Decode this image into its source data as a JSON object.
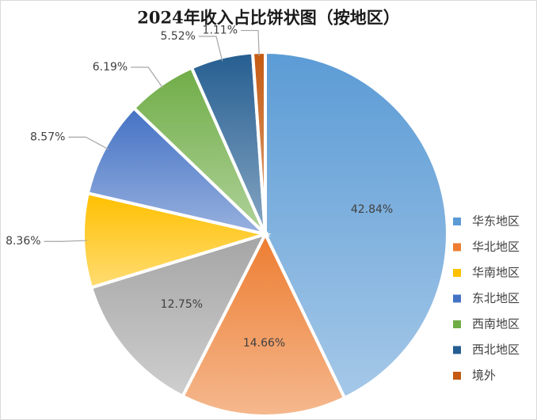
{
  "chart_data": {
    "type": "pie",
    "title": "2024年收入占比饼状图（按地区）",
    "categories": [
      "华东地区",
      "华北地区",
      null,
      "华南地区",
      "东北地区",
      "西南地区",
      "西北地区",
      "境外"
    ],
    "values": [
      42.84,
      14.66,
      12.75,
      8.36,
      8.57,
      6.19,
      5.52,
      1.11
    ],
    "value_labels": [
      "42.84%",
      "14.66%",
      "12.75%",
      "8.36%",
      "8.57%",
      "6.19%",
      "5.52%",
      "1.11%"
    ],
    "colors": [
      "#5b9bd5",
      "#ed7d31",
      "#a5a5a5",
      "#ffc000",
      "#4472c4",
      "#70ad47",
      "#255e91",
      "#c55a11"
    ],
    "legend": "right"
  }
}
